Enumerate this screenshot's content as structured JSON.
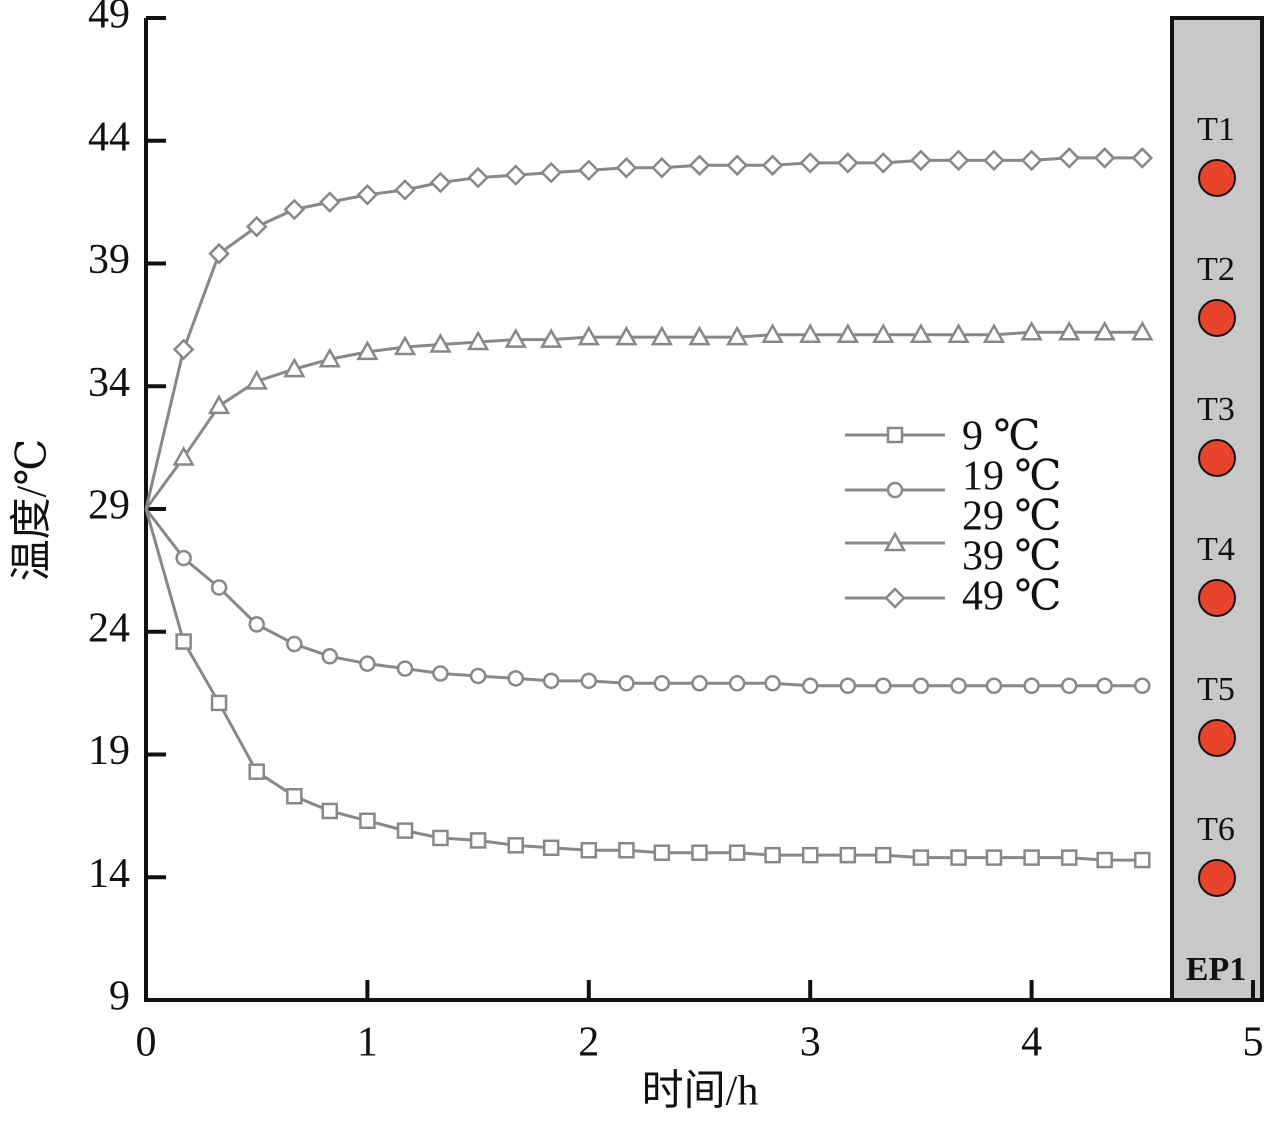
{
  "chart_data": {
    "type": "line",
    "xlabel": "时间/h",
    "ylabel": "温度/℃",
    "x": [
      0,
      0.17,
      0.33,
      0.5,
      0.67,
      0.83,
      1,
      1.17,
      1.33,
      1.5,
      1.67,
      1.83,
      2,
      2.17,
      2.33,
      2.5,
      2.67,
      2.83,
      3,
      3.17,
      3.33,
      3.5,
      3.67,
      3.83,
      4,
      4.17,
      4.33,
      4.5
    ],
    "series": [
      {
        "name": "9 ℃",
        "color": "#888888",
        "marker": "square",
        "values": [
          29,
          23.6,
          21.1,
          18.3,
          17.3,
          16.7,
          16.3,
          15.9,
          15.6,
          15.5,
          15.3,
          15.2,
          15.1,
          15.1,
          15.0,
          15.0,
          15.0,
          14.9,
          14.9,
          14.9,
          14.9,
          14.8,
          14.8,
          14.8,
          14.8,
          14.8,
          14.7,
          14.7
        ]
      },
      {
        "name": "19 ℃",
        "color": "#888888",
        "marker": "circle",
        "values": [
          29,
          27.0,
          25.8,
          24.3,
          23.5,
          23.0,
          22.7,
          22.5,
          22.3,
          22.2,
          22.1,
          22.0,
          22.0,
          21.9,
          21.9,
          21.9,
          21.9,
          21.9,
          21.8,
          21.8,
          21.8,
          21.8,
          21.8,
          21.8,
          21.8,
          21.8,
          21.8,
          21.8
        ]
      },
      {
        "name": "39 ℃",
        "color": "#888888",
        "marker": "triangle",
        "values": [
          29,
          31.1,
          33.2,
          34.2,
          34.7,
          35.1,
          35.4,
          35.6,
          35.7,
          35.8,
          35.9,
          35.9,
          36.0,
          36.0,
          36.0,
          36.0,
          36.0,
          36.1,
          36.1,
          36.1,
          36.1,
          36.1,
          36.1,
          36.1,
          36.2,
          36.2,
          36.2,
          36.2
        ]
      },
      {
        "name": "49 ℃",
        "color": "#888888",
        "marker": "diamond",
        "values": [
          29,
          35.5,
          39.4,
          40.5,
          41.2,
          41.5,
          41.8,
          42.0,
          42.3,
          42.5,
          42.6,
          42.7,
          42.8,
          42.9,
          42.9,
          43.0,
          43.0,
          43.0,
          43.1,
          43.1,
          43.1,
          43.2,
          43.2,
          43.2,
          43.2,
          43.3,
          43.3,
          43.3
        ]
      }
    ],
    "legend_extra": "29 ℃",
    "xlim": [
      0,
      5
    ],
    "xticks": [
      0,
      1,
      2,
      3,
      4,
      5
    ],
    "ylim": [
      9,
      49
    ],
    "yticks": [
      9,
      14,
      19,
      24,
      29,
      34,
      39,
      44,
      49
    ],
    "panel": {
      "sensors": [
        "T1",
        "T2",
        "T3",
        "T4",
        "T5",
        "T6"
      ],
      "label": "EP1"
    }
  }
}
